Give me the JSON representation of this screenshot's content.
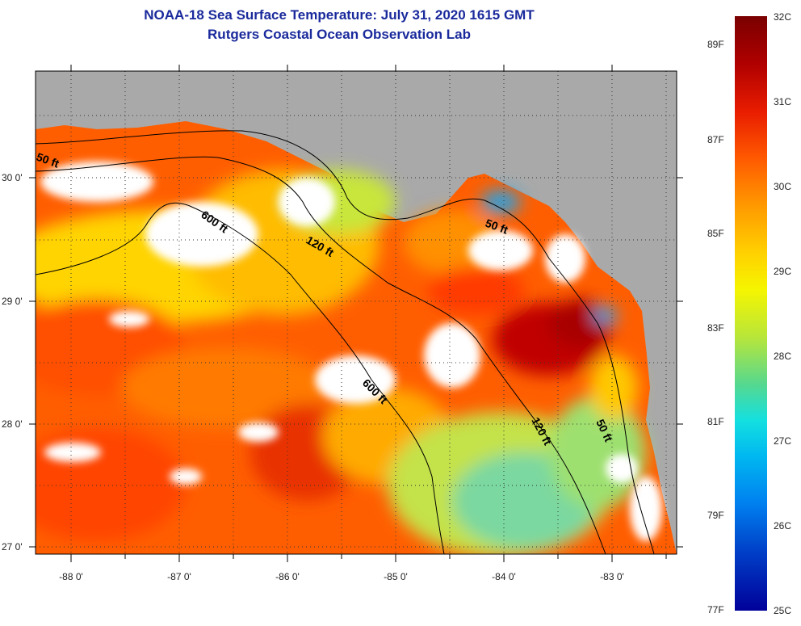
{
  "title": {
    "line1": "NOAA-18 Sea Surface Temperature:  July 31, 2020 1615 GMT",
    "line2": "Rutgers Coastal Ocean Observation Lab"
  },
  "map": {
    "x_ticks": [
      "-88 0'",
      "-87 0'",
      "-86 0'",
      "-85 0'",
      "-84 0'",
      "-83 0'"
    ],
    "y_ticks": [
      "30 0'",
      "29 0'",
      "28 0'",
      "27 0'"
    ],
    "depth_labels": [
      "50 ft",
      "600 ft",
      "120 ft",
      "50 ft",
      "600 ft",
      "120 ft",
      "50 ft"
    ],
    "colors": {
      "land": "#a9a9a9",
      "cloud": "#ffffff",
      "warm": "#ff4a00",
      "hot": "#c80000",
      "mild": "#ffb000",
      "cool": "#c8e63a",
      "cold": "#30c8d0"
    }
  },
  "colorbar": {
    "celsius": [
      "32C",
      "31C",
      "30C",
      "29C",
      "28C",
      "27C",
      "26C",
      "25C"
    ],
    "fahrenheit": [
      "89F",
      "87F",
      "85F",
      "83F",
      "81F",
      "79F",
      "77F"
    ]
  }
}
